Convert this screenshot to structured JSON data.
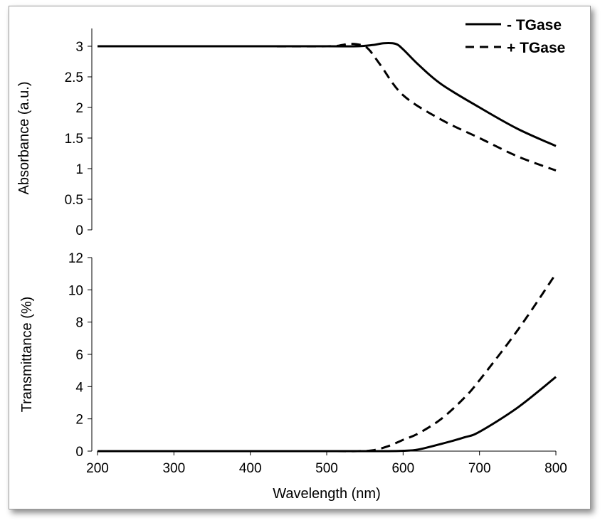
{
  "chart_data": [
    {
      "type": "line",
      "ylabel": "Absorbance (a.u.)",
      "xlabel": "",
      "xlim": [
        200,
        800
      ],
      "ylim": [
        0,
        3
      ],
      "y_ticks": [
        "0",
        "0.5",
        "1",
        "1.5",
        "2",
        "2.5",
        "3"
      ],
      "x_ticks": [],
      "grid": false,
      "legend": "top-right",
      "series": [
        {
          "name": "- TGase",
          "style": "solid",
          "x": [
            200,
            300,
            400,
            500,
            540,
            560,
            575,
            590,
            600,
            620,
            650,
            700,
            750,
            800
          ],
          "y": [
            3.0,
            3.0,
            3.0,
            3.0,
            3.0,
            3.02,
            3.05,
            3.04,
            2.95,
            2.7,
            2.38,
            2.0,
            1.65,
            1.37
          ]
        },
        {
          "name": "+ TGase",
          "style": "dashed",
          "x": [
            200,
            300,
            400,
            500,
            520,
            530,
            545,
            555,
            570,
            600,
            650,
            700,
            750,
            800
          ],
          "y": [
            3.0,
            3.0,
            3.0,
            3.0,
            3.02,
            3.04,
            3.02,
            2.95,
            2.7,
            2.2,
            1.8,
            1.5,
            1.2,
            0.97
          ]
        }
      ]
    },
    {
      "type": "line",
      "ylabel": "Transmittance (%)",
      "xlabel": "Wavelength (nm)",
      "xlim": [
        200,
        800
      ],
      "ylim": [
        0,
        12
      ],
      "y_ticks": [
        "0",
        "2",
        "4",
        "6",
        "8",
        "10",
        "12"
      ],
      "x_ticks": [
        "200",
        "300",
        "400",
        "500",
        "600",
        "700",
        "800"
      ],
      "grid": false,
      "series": [
        {
          "name": "- TGase",
          "style": "solid",
          "x": [
            200,
            300,
            400,
            500,
            580,
            600,
            620,
            650,
            680,
            700,
            750,
            800
          ],
          "y": [
            0,
            0,
            0,
            0,
            0,
            0.02,
            0.1,
            0.45,
            0.85,
            1.2,
            2.7,
            4.6
          ]
        },
        {
          "name": "+ TGase",
          "style": "dashed",
          "x": [
            200,
            300,
            400,
            500,
            540,
            560,
            580,
            600,
            620,
            650,
            680,
            700,
            750,
            800
          ],
          "y": [
            0,
            0,
            0,
            0,
            0,
            0.05,
            0.3,
            0.7,
            1.1,
            2.0,
            3.3,
            4.4,
            7.5,
            11.0
          ]
        }
      ]
    }
  ]
}
